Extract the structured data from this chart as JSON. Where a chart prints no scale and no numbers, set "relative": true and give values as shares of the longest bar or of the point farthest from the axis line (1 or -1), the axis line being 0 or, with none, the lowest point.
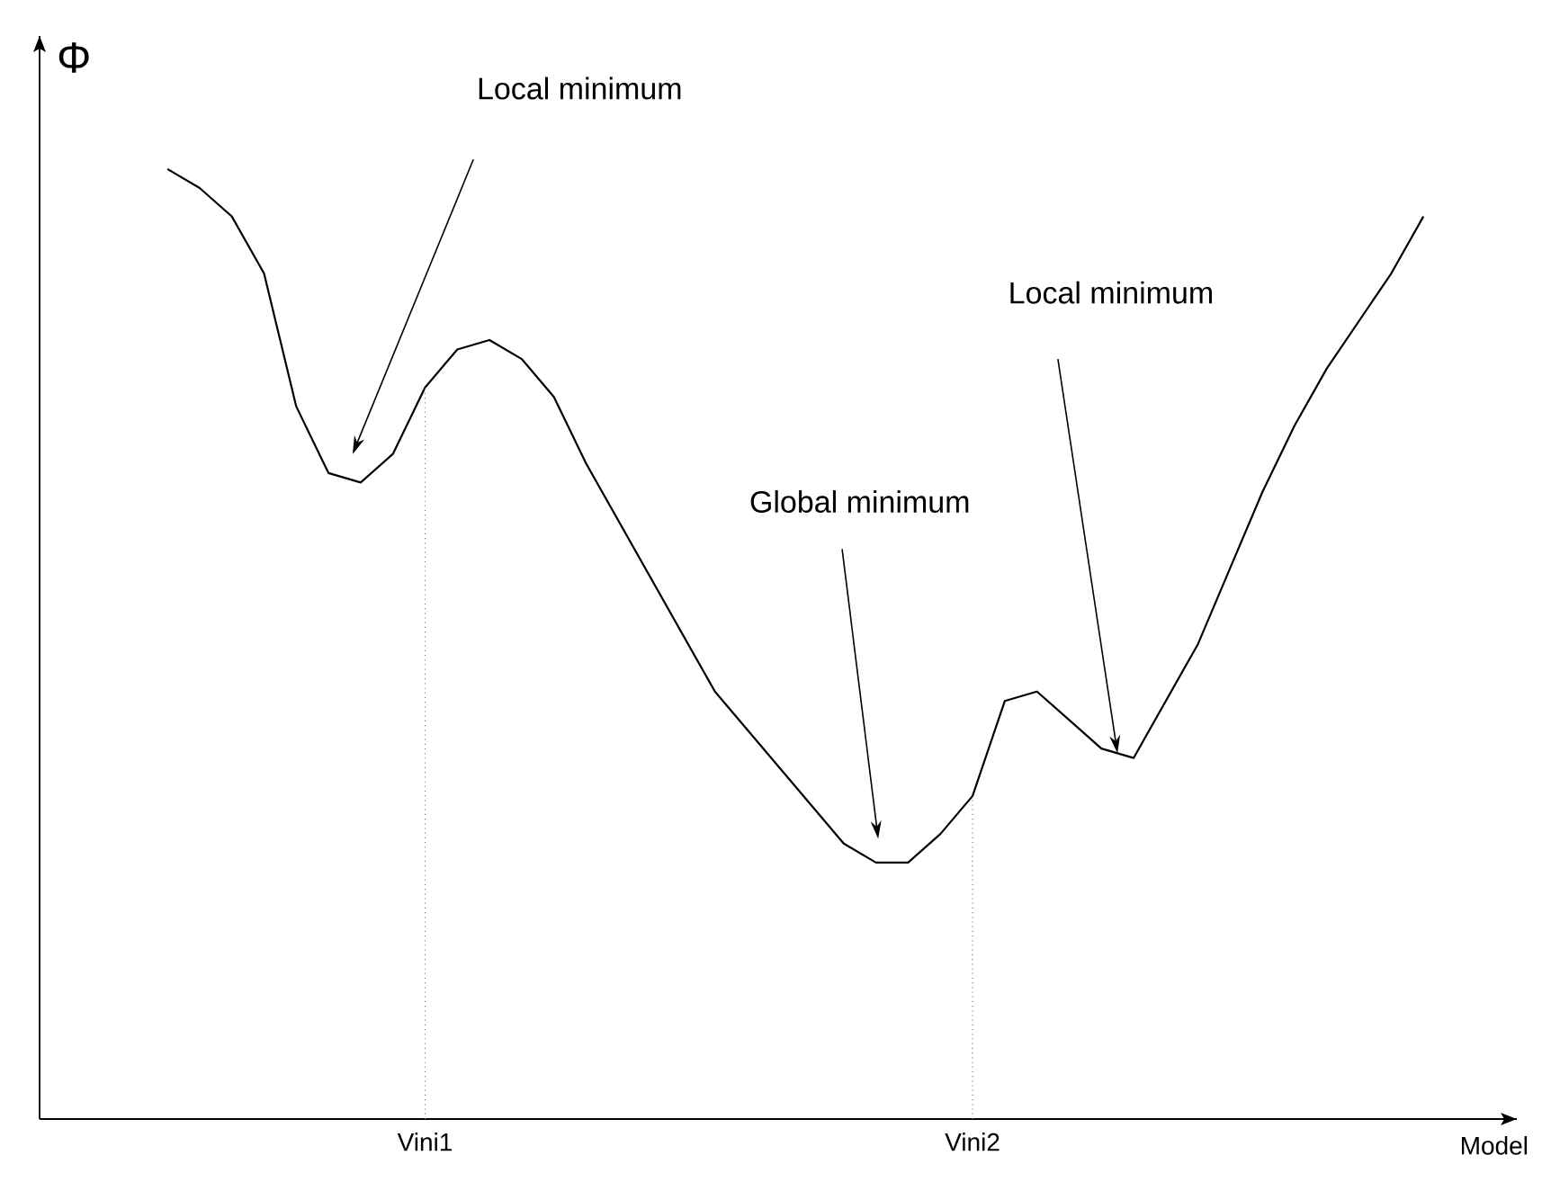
{
  "chart_data": {
    "type": "line",
    "relative": true,
    "xlabel": "Model",
    "ylabel": "Φ",
    "marker": "none",
    "line_style": "solid",
    "categories": [
      null,
      null,
      null,
      null,
      null,
      null,
      null,
      null,
      "Vini1",
      null,
      null,
      null,
      null,
      null,
      null,
      null,
      null,
      null,
      null,
      null,
      null,
      null,
      null,
      null,
      null,
      "Vini2",
      null,
      null,
      null,
      null,
      null,
      null,
      null,
      null,
      null,
      null,
      null,
      null,
      null,
      null
    ],
    "series": [
      {
        "color": "#000000",
        "values": [
          1.0,
          0.98,
          0.95,
          0.89,
          0.75,
          0.68,
          0.67,
          0.7,
          0.77,
          0.81,
          0.82,
          0.8,
          0.76,
          0.69,
          0.63,
          0.57,
          0.51,
          0.45,
          0.41,
          0.37,
          0.33,
          0.29,
          0.27,
          0.27,
          0.3,
          0.34,
          0.44,
          0.45,
          0.42,
          0.39,
          0.38,
          0.44,
          0.5,
          0.58,
          0.66,
          0.73,
          0.79,
          0.84,
          0.89,
          0.95
        ]
      }
    ],
    "ref_lines": [
      {
        "axis": "x",
        "value": "Vini1",
        "line_style": "dotted",
        "color": "#808080"
      },
      {
        "axis": "x",
        "value": "Vini2",
        "line_style": "dotted",
        "color": "#808080"
      }
    ],
    "annotations": [
      "Local minimum",
      "Global minimum",
      "Local minimum"
    ]
  }
}
